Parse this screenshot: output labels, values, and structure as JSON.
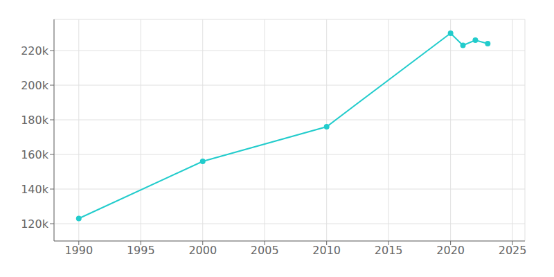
{
  "chart_data": {
    "type": "line",
    "x": [
      1990,
      2000,
      2010,
      2020,
      2021,
      2022,
      2023
    ],
    "values": [
      123000,
      156000,
      176000,
      230000,
      223000,
      226000,
      224000
    ],
    "color": "#22CCCC",
    "marker": "circle",
    "xlim": [
      1988,
      2026
    ],
    "ylim": [
      110000,
      238000
    ],
    "xticks": [
      1990,
      1995,
      2000,
      2005,
      2010,
      2015,
      2020,
      2025
    ],
    "yticks": [
      {
        "value": 120000,
        "label": "120k"
      },
      {
        "value": 140000,
        "label": "140k"
      },
      {
        "value": 160000,
        "label": "160k"
      },
      {
        "value": 180000,
        "label": "180k"
      },
      {
        "value": 200000,
        "label": "200k"
      },
      {
        "value": 220000,
        "label": "220k"
      }
    ],
    "grid": true
  }
}
